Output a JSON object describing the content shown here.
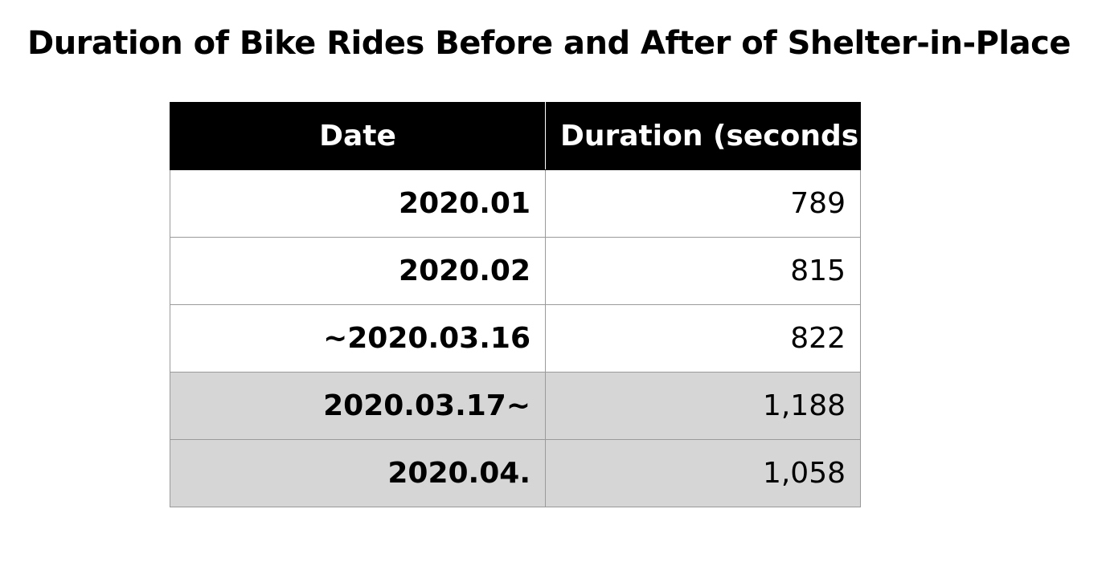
{
  "chart_data": {
    "type": "table",
    "title": "Duration of Bike Rides Before and After of Shelter-in-Place",
    "columns": [
      "Date",
      "Duration (seconds)"
    ],
    "rows": [
      {
        "date": "2020.01",
        "duration": "789",
        "value": 789,
        "shaded": false
      },
      {
        "date": "2020.02",
        "duration": "815",
        "value": 815,
        "shaded": false
      },
      {
        "date": "~2020.03.16",
        "duration": "822",
        "value": 822,
        "shaded": false
      },
      {
        "date": "2020.03.17~",
        "duration": "1,188",
        "value": 1188,
        "shaded": true
      },
      {
        "date": "2020.04.",
        "duration": "1,058",
        "value": 1058,
        "shaded": true
      }
    ],
    "colors": {
      "header_background": "#000000",
      "header_text": "#ffffff",
      "shaded_row": "#d6d6d6",
      "row": "#ffffff"
    }
  }
}
